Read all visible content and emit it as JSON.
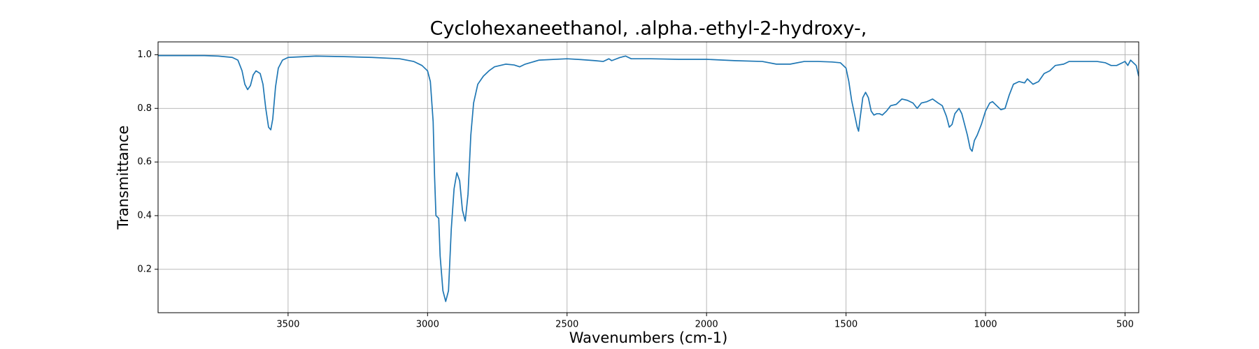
{
  "chart_data": {
    "type": "line",
    "title": "Cyclohexaneethanol, .alpha.-ethyl-2-hydroxy-,",
    "xlabel": "Wavenumbers (cm-1)",
    "ylabel": "Transmittance",
    "xlim": [
      3966,
      451
    ],
    "ylim": [
      0.038,
      1.048
    ],
    "xticks": [
      3500,
      3000,
      2500,
      2000,
      1500,
      1000,
      500
    ],
    "yticks": [
      0.2,
      0.4,
      0.6,
      0.8,
      {
        "value": 1,
        "label": "1.0"
      }
    ],
    "grid": true,
    "series": [
      {
        "color": "#1f77b4",
        "x": [
          3966,
          3800,
          3750,
          3700,
          3680,
          3665,
          3655,
          3645,
          3635,
          3625,
          3615,
          3600,
          3590,
          3580,
          3570,
          3562,
          3555,
          3545,
          3535,
          3520,
          3500,
          3400,
          3300,
          3200,
          3100,
          3050,
          3020,
          3000,
          2990,
          2980,
          2975,
          2970,
          2960,
          2955,
          2945,
          2935,
          2925,
          2915,
          2905,
          2895,
          2885,
          2875,
          2865,
          2855,
          2845,
          2835,
          2820,
          2800,
          2780,
          2760,
          2720,
          2690,
          2670,
          2650,
          2600,
          2500,
          2450,
          2400,
          2370,
          2350,
          2340,
          2310,
          2290,
          2270,
          2200,
          2100,
          2000,
          1900,
          1800,
          1750,
          1700,
          1650,
          1600,
          1550,
          1520,
          1500,
          1490,
          1480,
          1470,
          1460,
          1455,
          1450,
          1440,
          1430,
          1420,
          1410,
          1400,
          1390,
          1380,
          1370,
          1355,
          1340,
          1320,
          1300,
          1280,
          1260,
          1245,
          1230,
          1210,
          1190,
          1170,
          1155,
          1140,
          1130,
          1120,
          1110,
          1095,
          1085,
          1075,
          1065,
          1055,
          1048,
          1040,
          1030,
          1015,
          1000,
          985,
          975,
          960,
          945,
          930,
          915,
          900,
          880,
          860,
          850,
          830,
          810,
          790,
          770,
          750,
          720,
          700,
          650,
          600,
          570,
          550,
          530,
          510,
          500,
          490,
          480,
          470,
          460,
          451
        ],
        "values": [
          0.997,
          0.997,
          0.995,
          0.99,
          0.98,
          0.94,
          0.89,
          0.87,
          0.885,
          0.925,
          0.94,
          0.93,
          0.89,
          0.8,
          0.73,
          0.72,
          0.76,
          0.88,
          0.95,
          0.98,
          0.99,
          0.995,
          0.993,
          0.99,
          0.985,
          0.975,
          0.96,
          0.94,
          0.9,
          0.75,
          0.55,
          0.4,
          0.39,
          0.25,
          0.12,
          0.08,
          0.12,
          0.35,
          0.5,
          0.56,
          0.53,
          0.42,
          0.38,
          0.48,
          0.7,
          0.82,
          0.89,
          0.92,
          0.94,
          0.955,
          0.965,
          0.962,
          0.955,
          0.965,
          0.98,
          0.985,
          0.982,
          0.978,
          0.975,
          0.985,
          0.978,
          0.99,
          0.995,
          0.985,
          0.985,
          0.983,
          0.983,
          0.978,
          0.975,
          0.965,
          0.965,
          0.975,
          0.975,
          0.973,
          0.97,
          0.95,
          0.9,
          0.83,
          0.78,
          0.73,
          0.715,
          0.76,
          0.84,
          0.86,
          0.84,
          0.79,
          0.775,
          0.78,
          0.78,
          0.775,
          0.79,
          0.81,
          0.815,
          0.835,
          0.83,
          0.82,
          0.8,
          0.82,
          0.825,
          0.835,
          0.82,
          0.81,
          0.77,
          0.73,
          0.74,
          0.78,
          0.8,
          0.78,
          0.74,
          0.7,
          0.65,
          0.64,
          0.68,
          0.7,
          0.74,
          0.79,
          0.82,
          0.825,
          0.81,
          0.795,
          0.8,
          0.85,
          0.89,
          0.9,
          0.895,
          0.91,
          0.89,
          0.9,
          0.93,
          0.94,
          0.96,
          0.965,
          0.975,
          0.975,
          0.975,
          0.97,
          0.96,
          0.96,
          0.97,
          0.975,
          0.96,
          0.98,
          0.97,
          0.96,
          0.92
        ]
      }
    ]
  }
}
